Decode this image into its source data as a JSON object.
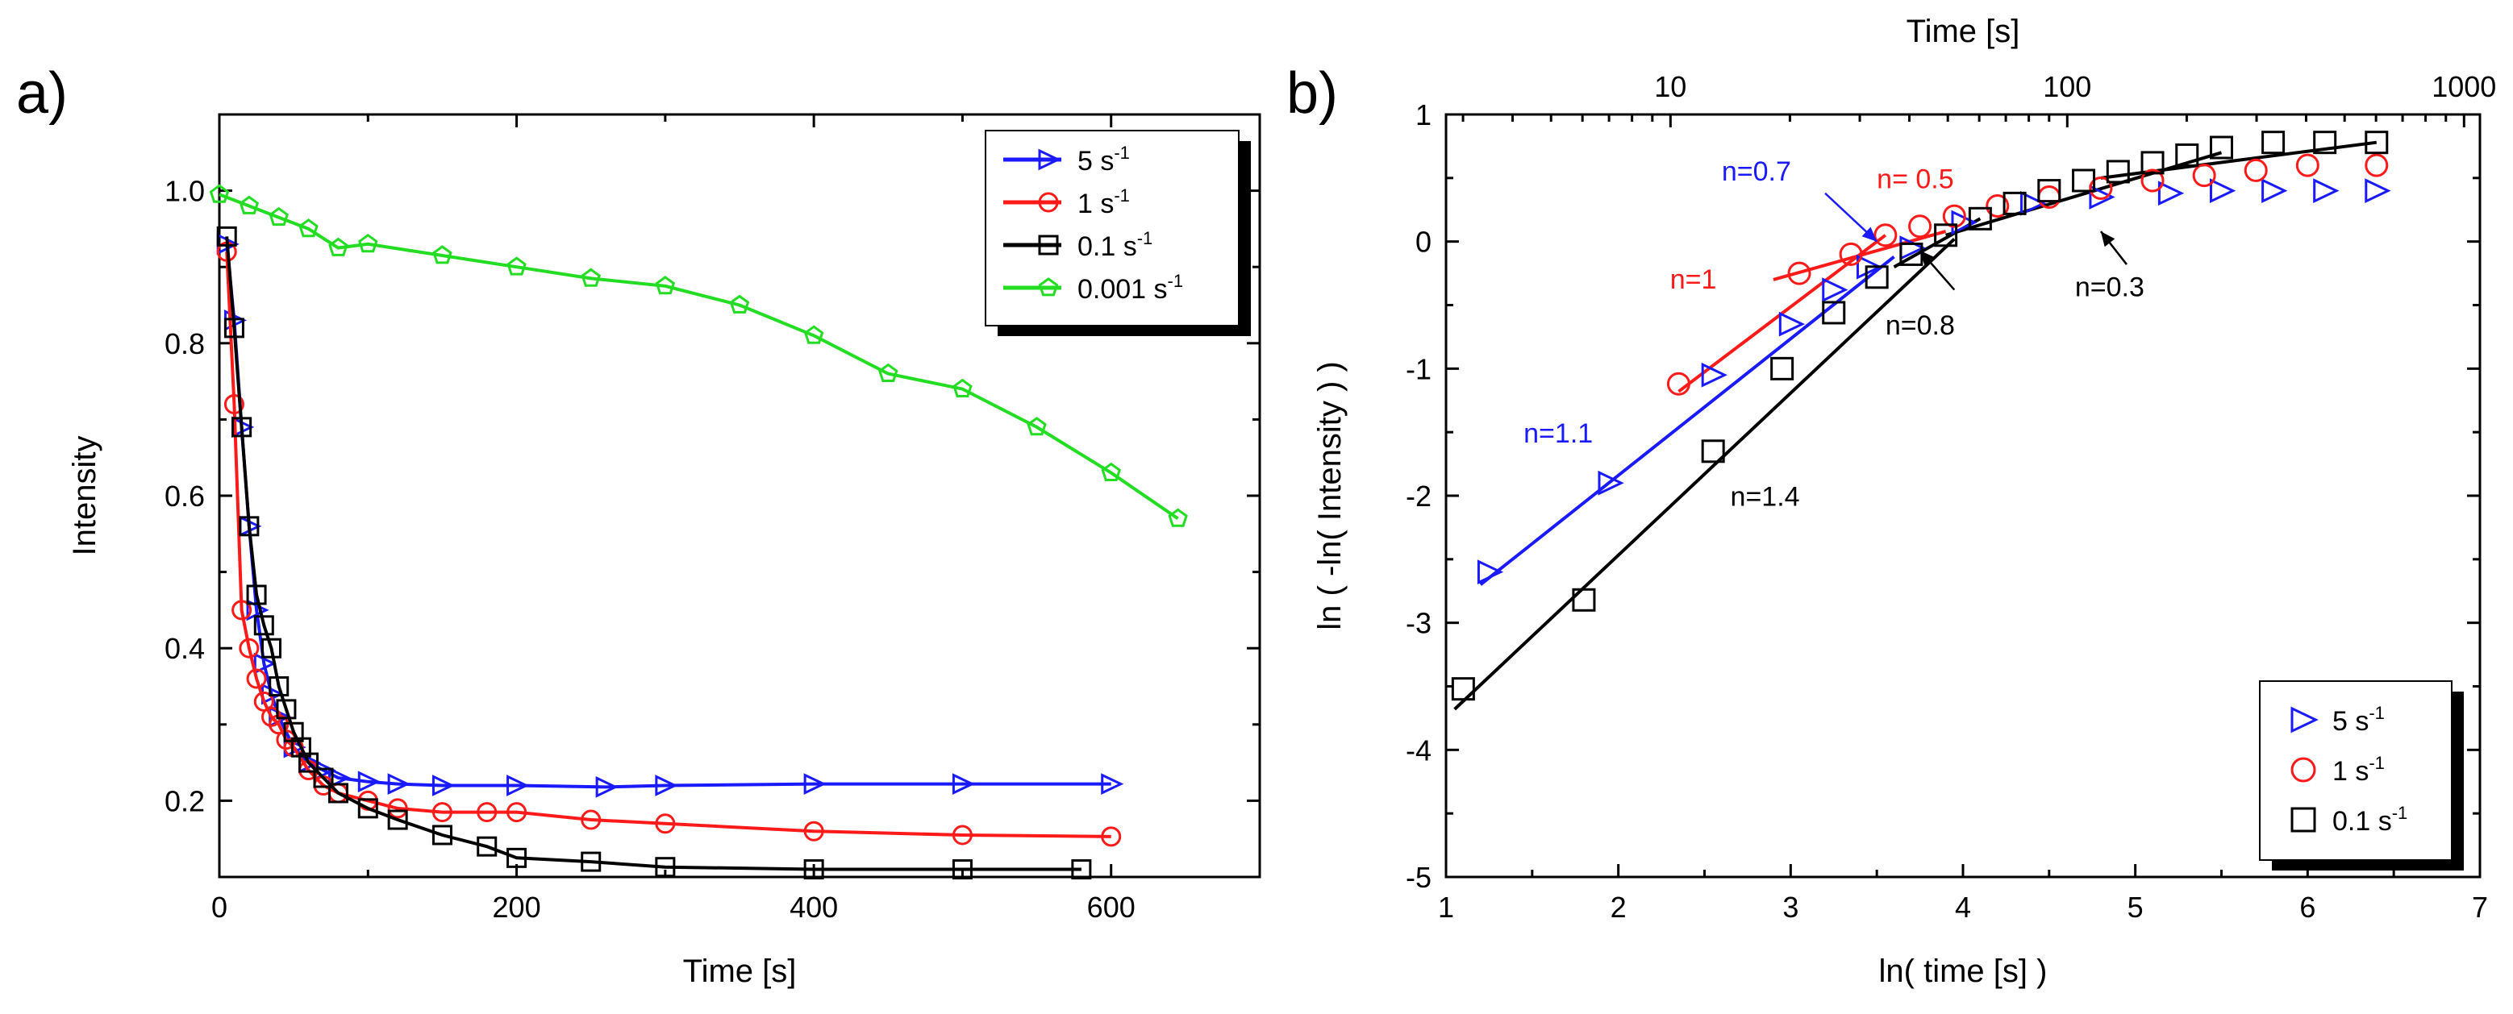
{
  "panels": {
    "a_label": "a)",
    "b_label": "b)"
  },
  "colors": {
    "blue": "#1a1aff",
    "red": "#ff1a1a",
    "black": "#000000",
    "green": "#22dd22"
  },
  "chart_data": [
    {
      "type": "line",
      "panel": "a",
      "title": "",
      "xlabel": "Time [s]",
      "ylabel": "Intensity",
      "xlim": [
        0,
        700
      ],
      "ylim": [
        0.1,
        1.1
      ],
      "xticks": [
        0,
        200,
        400,
        600
      ],
      "yticks": [
        0.2,
        0.4,
        0.6,
        0.8,
        1.0
      ],
      "ytick_labels": [
        "0.2",
        "0.4",
        "0.6",
        "0.8",
        "1.0"
      ],
      "grid": false,
      "legend": "top-right",
      "series": [
        {
          "name": "5 s-1",
          "label_base": "5 s",
          "label_sup": "-1",
          "color": "#1a1aff",
          "marker": "triangle-right",
          "x": [
            5,
            10,
            15,
            20,
            25,
            30,
            35,
            40,
            50,
            60,
            70,
            80,
            100,
            120,
            150,
            200,
            260,
            300,
            400,
            500,
            600
          ],
          "y": [
            0.93,
            0.83,
            0.69,
            0.56,
            0.45,
            0.38,
            0.34,
            0.31,
            0.27,
            0.25,
            0.24,
            0.23,
            0.225,
            0.222,
            0.22,
            0.22,
            0.218,
            0.22,
            0.222,
            0.222,
            0.222
          ]
        },
        {
          "name": "1 s-1",
          "label_base": "1 s",
          "label_sup": "-1",
          "color": "#ff1a1a",
          "marker": "circle",
          "x": [
            5,
            10,
            15,
            20,
            25,
            30,
            35,
            40,
            45,
            50,
            60,
            70,
            80,
            100,
            120,
            150,
            180,
            200,
            250,
            300,
            400,
            500,
            600
          ],
          "y": [
            0.92,
            0.72,
            0.45,
            0.4,
            0.36,
            0.33,
            0.31,
            0.3,
            0.28,
            0.27,
            0.24,
            0.22,
            0.21,
            0.2,
            0.19,
            0.185,
            0.185,
            0.185,
            0.175,
            0.17,
            0.16,
            0.155,
            0.153
          ]
        },
        {
          "name": "0.1 s-1",
          "label_base": "0.1 s",
          "label_sup": "-1",
          "color": "#000000",
          "marker": "square",
          "x": [
            5,
            10,
            15,
            20,
            25,
            30,
            35,
            40,
            45,
            50,
            55,
            60,
            70,
            80,
            100,
            120,
            150,
            180,
            200,
            250,
            300,
            400,
            500,
            580
          ],
          "y": [
            0.94,
            0.82,
            0.69,
            0.56,
            0.47,
            0.43,
            0.4,
            0.35,
            0.32,
            0.29,
            0.27,
            0.25,
            0.23,
            0.21,
            0.19,
            0.175,
            0.155,
            0.14,
            0.125,
            0.12,
            0.113,
            0.11,
            0.11,
            0.11
          ]
        },
        {
          "name": "0.001 s-1",
          "label_base": "0.001 s",
          "label_sup": "-1",
          "color": "#22dd22",
          "marker": "pentagon",
          "x": [
            0,
            20,
            40,
            60,
            80,
            100,
            150,
            200,
            250,
            300,
            350,
            400,
            450,
            500,
            550,
            600,
            645
          ],
          "y": [
            0.995,
            0.98,
            0.965,
            0.95,
            0.925,
            0.93,
            0.915,
            0.9,
            0.885,
            0.875,
            0.85,
            0.81,
            0.76,
            0.74,
            0.69,
            0.63,
            0.57
          ]
        }
      ]
    },
    {
      "type": "scatter",
      "panel": "b",
      "title": "",
      "xlabel": "ln( time [s] )",
      "ylabel": "ln ( -ln( Intensity ) )",
      "top_xlabel": "Time [s]",
      "xlim": [
        1,
        7
      ],
      "ylim": [
        -5,
        1
      ],
      "xticks": [
        1,
        2,
        3,
        4,
        5,
        6,
        7
      ],
      "yticks": [
        -5,
        -4,
        -3,
        -2,
        -1,
        0,
        1
      ],
      "top_xscale": "log",
      "top_xticks": [
        10,
        100,
        1000
      ],
      "grid": false,
      "legend": "bottom-right",
      "series": [
        {
          "name": "5 s-1",
          "label_base": "5 s",
          "label_sup": "-1",
          "color": "#1a1aff",
          "marker": "triangle-right",
          "x": [
            1.25,
            1.95,
            2.55,
            3.0,
            3.25,
            3.45,
            3.7,
            4.0,
            4.4,
            4.8,
            5.2,
            5.5,
            5.8,
            6.1,
            6.4
          ],
          "y": [
            -2.6,
            -1.9,
            -1.05,
            -0.65,
            -0.38,
            -0.2,
            -0.05,
            0.15,
            0.3,
            0.35,
            0.38,
            0.4,
            0.4,
            0.4,
            0.4
          ]
        },
        {
          "name": "1 s-1",
          "label_base": "1 s",
          "label_sup": "-1",
          "color": "#ff1a1a",
          "marker": "circle",
          "x": [
            2.35,
            3.05,
            3.35,
            3.55,
            3.75,
            3.95,
            4.2,
            4.5,
            4.8,
            5.1,
            5.4,
            5.7,
            6.0,
            6.4
          ],
          "y": [
            -1.12,
            -0.25,
            -0.1,
            0.05,
            0.12,
            0.2,
            0.28,
            0.35,
            0.42,
            0.48,
            0.52,
            0.56,
            0.6,
            0.6
          ]
        },
        {
          "name": "0.1 s-1",
          "label_base": "0.1 s",
          "label_sup": "-1",
          "color": "#000000",
          "marker": "square",
          "x": [
            1.1,
            1.8,
            2.55,
            2.95,
            3.25,
            3.5,
            3.7,
            3.9,
            4.1,
            4.3,
            4.5,
            4.7,
            4.9,
            5.1,
            5.3,
            5.5,
            5.8,
            6.1,
            6.4
          ],
          "y": [
            -3.52,
            -2.82,
            -1.65,
            -1.0,
            -0.56,
            -0.28,
            -0.1,
            0.05,
            0.18,
            0.3,
            0.4,
            0.48,
            0.55,
            0.62,
            0.68,
            0.74,
            0.78,
            0.78,
            0.78
          ]
        }
      ],
      "fit_lines": [
        {
          "color": "#1a1aff",
          "x": [
            1.2,
            3.6
          ],
          "y": [
            -2.7,
            -0.12
          ]
        },
        {
          "color": "#ff1a1a",
          "x": [
            2.35,
            3.55
          ],
          "y": [
            -1.18,
            0.05
          ]
        },
        {
          "color": "#ff1a1a",
          "x": [
            2.9,
            3.9
          ],
          "y": [
            -0.3,
            0.08
          ]
        },
        {
          "color": "#000000",
          "x": [
            1.05,
            3.95
          ],
          "y": [
            -3.68,
            0.02
          ]
        },
        {
          "color": "#000000",
          "x": [
            3.6,
            4.1
          ],
          "y": [
            -0.2,
            0.18
          ]
        },
        {
          "color": "#000000",
          "x": [
            3.9,
            5.5
          ],
          "y": [
            0.05,
            0.7
          ]
        },
        {
          "color": "#000000",
          "x": [
            4.8,
            6.4
          ],
          "y": [
            0.5,
            0.78
          ]
        }
      ],
      "annotations": [
        {
          "text": "n=0.7",
          "color": "#1a1aff",
          "x": 2.6,
          "y": 0.48
        },
        {
          "text": "n= 0.5",
          "color": "#ff1a1a",
          "x": 3.5,
          "y": 0.42
        },
        {
          "text": "n=1",
          "color": "#ff1a1a",
          "x": 2.3,
          "y": -0.37
        },
        {
          "text": "n=1.1",
          "color": "#1a1aff",
          "x": 1.45,
          "y": -1.58
        },
        {
          "text": "n=1.4",
          "color": "#000000",
          "x": 2.65,
          "y": -2.08
        },
        {
          "text": "n=0.8",
          "color": "#000000",
          "x": 3.55,
          "y": -0.73
        },
        {
          "text": "n=0.3",
          "color": "#000000",
          "x": 4.65,
          "y": -0.43
        }
      ],
      "arrows": [
        {
          "color": "#1a1aff",
          "from": [
            3.2,
            0.38
          ],
          "to": [
            3.5,
            0.0
          ]
        },
        {
          "color": "#000000",
          "from": [
            3.95,
            -0.38
          ],
          "to": [
            3.75,
            -0.07
          ]
        },
        {
          "color": "#000000",
          "from": [
            4.95,
            -0.18
          ],
          "to": [
            4.8,
            0.08
          ]
        }
      ]
    }
  ]
}
